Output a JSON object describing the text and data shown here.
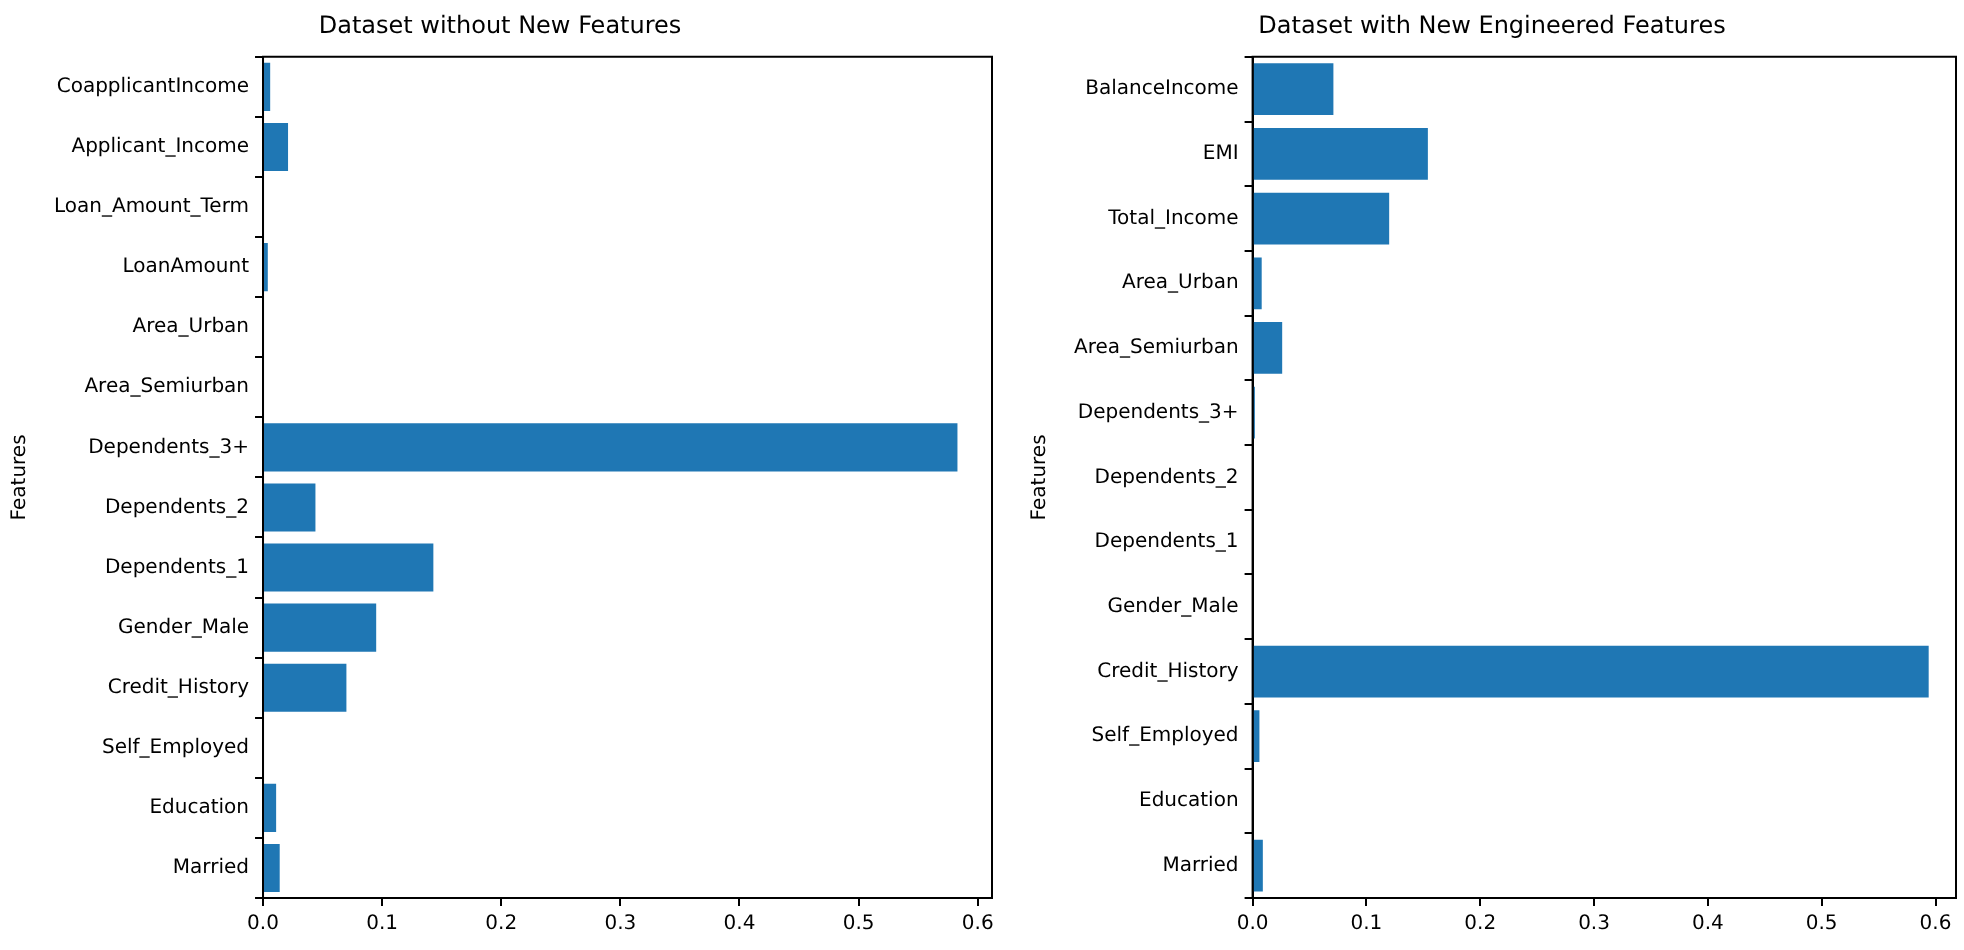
{
  "chart_data": [
    {
      "type": "bar",
      "orientation": "horizontal",
      "title": "Dataset without New Features",
      "ylabel": "Features",
      "categories": [
        "CoapplicantIncome",
        "Applicant_Income",
        "Loan_Amount_Term",
        "LoanAmount",
        "Area_Urban",
        "Area_Semiurban",
        "Dependents_3+",
        "Dependents_2",
        "Dependents_1",
        "Gender_Male",
        "Credit_History",
        "Self_Employed",
        "Education",
        "Married"
      ],
      "values": [
        0.006,
        0.021,
        0,
        0.004,
        0,
        0,
        0.583,
        0.044,
        0.143,
        0.095,
        0.07,
        0,
        0.011,
        0.014
      ],
      "color": "#1f77b4",
      "xlim": [
        0,
        0.612
      ],
      "xticks": [
        {
          "value": 0,
          "label": "0.0"
        },
        0.1,
        0.2,
        0.3,
        0.4,
        0.5,
        0.6
      ],
      "grid": false
    },
    {
      "type": "bar",
      "orientation": "horizontal",
      "title": "Dataset with New Engineered Features",
      "ylabel": "Features",
      "categories": [
        "BalanceIncome",
        "EMI",
        "Total_Income",
        "Area_Urban",
        "Area_Semiurban",
        "Dependents_3+",
        "Dependents_2",
        "Dependents_1",
        "Gender_Male",
        "Credit_History",
        "Self_Employed",
        "Education",
        "Married"
      ],
      "values": [
        0.071,
        0.154,
        0.12,
        0.008,
        0.026,
        0.002,
        0,
        0,
        0,
        0.594,
        0.006,
        0,
        0.009
      ],
      "color": "#1f77b4",
      "xlim": [
        0,
        0.618
      ],
      "xticks": [
        {
          "value": 0,
          "label": "0.0"
        },
        0.1,
        0.2,
        0.3,
        0.4,
        0.5,
        0.6
      ],
      "grid": false
    }
  ]
}
